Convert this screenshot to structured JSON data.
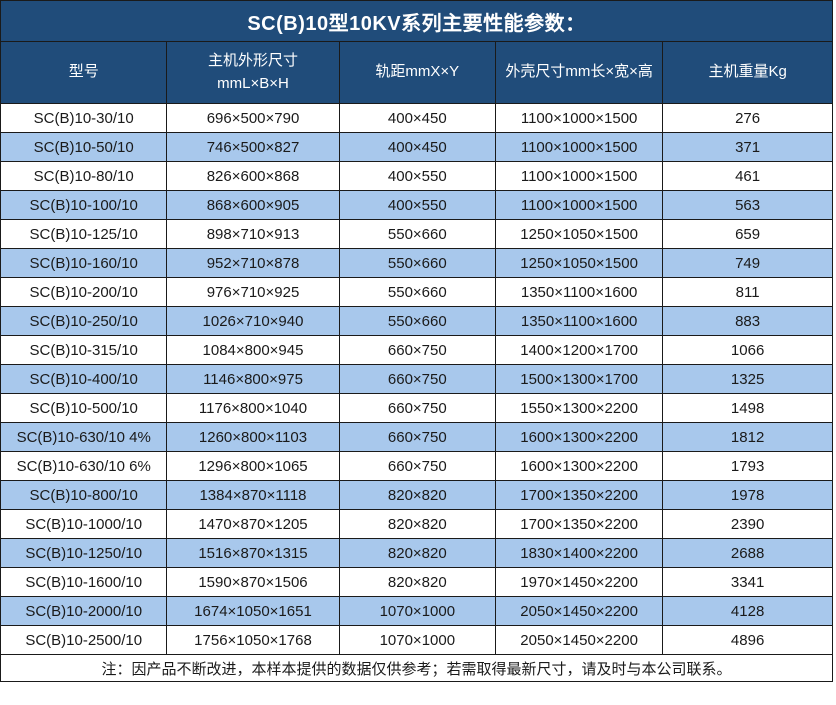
{
  "chart_data": {
    "type": "table",
    "title": "SC(B)10型10KV系列主要性能参数：",
    "columns": [
      "型号",
      "主机外形尺寸\nmmL×B×H",
      "轨距mmX×Y",
      "外壳尺寸mm长×宽×高",
      "主机重量Kg"
    ],
    "rows": [
      [
        "SC(B)10-30/10",
        "696×500×790",
        "400×450",
        "1100×1000×1500",
        "276"
      ],
      [
        "SC(B)10-50/10",
        "746×500×827",
        "400×450",
        "1100×1000×1500",
        "371"
      ],
      [
        "SC(B)10-80/10",
        "826×600×868",
        "400×550",
        "1100×1000×1500",
        "461"
      ],
      [
        "SC(B)10-100/10",
        "868×600×905",
        "400×550",
        "1100×1000×1500",
        "563"
      ],
      [
        "SC(B)10-125/10",
        "898×710×913",
        "550×660",
        "1250×1050×1500",
        "659"
      ],
      [
        "SC(B)10-160/10",
        "952×710×878",
        "550×660",
        "1250×1050×1500",
        "749"
      ],
      [
        "SC(B)10-200/10",
        "976×710×925",
        "550×660",
        "1350×1100×1600",
        "811"
      ],
      [
        "SC(B)10-250/10",
        "1026×710×940",
        "550×660",
        "1350×1100×1600",
        "883"
      ],
      [
        "SC(B)10-315/10",
        "1084×800×945",
        "660×750",
        "1400×1200×1700",
        "1066"
      ],
      [
        "SC(B)10-400/10",
        "1146×800×975",
        "660×750",
        "1500×1300×1700",
        "1325"
      ],
      [
        "SC(B)10-500/10",
        "1176×800×1040",
        "660×750",
        "1550×1300×2200",
        "1498"
      ],
      [
        "SC(B)10-630/10 4%",
        "1260×800×1103",
        "660×750",
        "1600×1300×2200",
        "1812"
      ],
      [
        "SC(B)10-630/10 6%",
        "1296×800×1065",
        "660×750",
        "1600×1300×2200",
        "1793"
      ],
      [
        "SC(B)10-800/10",
        "1384×870×1118",
        "820×820",
        "1700×1350×2200",
        "1978"
      ],
      [
        "SC(B)10-1000/10",
        "1470×870×1205",
        "820×820",
        "1700×1350×2200",
        "2390"
      ],
      [
        "SC(B)10-1250/10",
        "1516×870×1315",
        "820×820",
        "1830×1400×2200",
        "2688"
      ],
      [
        "SC(B)10-1600/10",
        "1590×870×1506",
        "820×820",
        "1970×1450×2200",
        "3341"
      ],
      [
        "SC(B)10-2000/10",
        "1674×1050×1651",
        "1070×1000",
        "2050×1450×2200",
        "4128"
      ],
      [
        "SC(B)10-2500/10",
        "1756×1050×1768",
        "1070×1000",
        "2050×1450×2200",
        "4896"
      ]
    ],
    "footnote": "注：因产品不断改进，本样本提供的数据仅供参考；若需取得最新尺寸，请及时与本公司联系。",
    "layout": {
      "column_width_percents": [
        20.0,
        20.7,
        18.8,
        20.1,
        20.4
      ],
      "alternating_rows": "odd rows white, even rows light blue",
      "grid": "on"
    }
  },
  "colors": {
    "header_bg": "#204c7a",
    "header_text": "#ffffff",
    "alt_row_bg": "#a8c8ec",
    "row_bg": "#ffffff",
    "border": "#1a1a1a",
    "body_text": "#1a1a1a"
  }
}
